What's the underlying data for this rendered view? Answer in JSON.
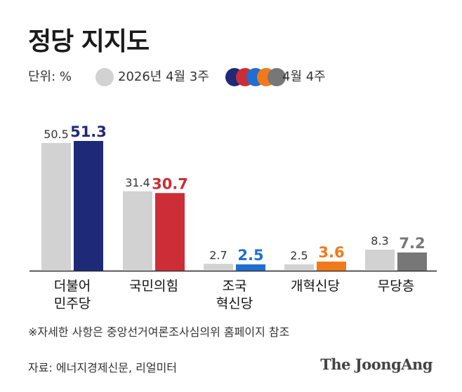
{
  "title": "정당 지지도",
  "legend": {
    "unit_label": "단위: %",
    "previous_label": "2026년 4월 3주",
    "current_label": "4월 4주"
  },
  "colors": {
    "previous": "#d2d2d2",
    "current": [
      "#1e2a78",
      "#cc2d36",
      "#1f6fd1",
      "#f07a1a",
      "#777777"
    ]
  },
  "chart_data": {
    "type": "bar",
    "categories": [
      "더불어\n민주당",
      "국민의힘",
      "조국\n혁신당",
      "개혁신당",
      "무당층"
    ],
    "series": [
      {
        "name": "2026년 4월 3주",
        "values": [
          50.5,
          31.4,
          2.7,
          2.5,
          8.3
        ]
      },
      {
        "name": "4월 4주",
        "values": [
          51.3,
          30.7,
          2.5,
          3.6,
          7.2
        ]
      }
    ],
    "value_labels_previous": [
      "50.5",
      "31.4",
      "2.7",
      "2.5",
      "8.3"
    ],
    "value_labels_current": [
      "51.3",
      "30.7",
      "2.5",
      "3.6",
      "7.2"
    ],
    "ylim": [
      0,
      51.3
    ],
    "grid": false,
    "legend_position": "top-left"
  },
  "footnote": "※자세한 사항은 중앙선거여론조사심의위 홈페이지 참조",
  "source": "자료: 에너지경제신문, 리얼미터",
  "brand": "The JoongAng"
}
